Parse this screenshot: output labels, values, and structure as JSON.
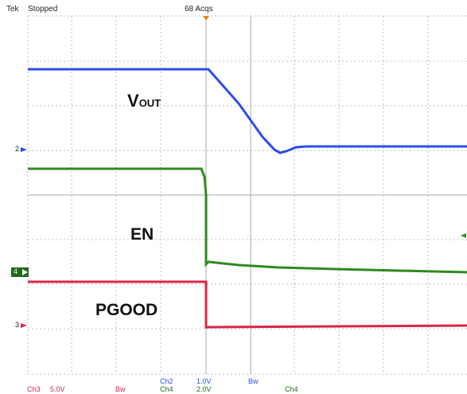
{
  "header": {
    "brand": "Tek",
    "run_state": "Stopped",
    "acquisitions": "68 Acqs"
  },
  "traces": [
    {
      "id": "vout",
      "label_main": "V",
      "label_sub": "OUT",
      "color": "#2b4ee8",
      "ch_marker": "2"
    },
    {
      "id": "en",
      "label_main": "EN",
      "color": "#2f8a1e",
      "ch_marker": "4"
    },
    {
      "id": "pgood",
      "label_main": "PGOOD",
      "color": "#d8264a",
      "ch_marker": "3"
    }
  ],
  "footer": {
    "ch3": "Ch3",
    "ch3_scale": "5.0V",
    "ch3_bw": "Bw",
    "ch2": "Ch2",
    "ch2_scale": "1.0V",
    "ch2_bw": "Bw",
    "ch4": "Ch4",
    "ch4_scale": "2.0V",
    "trig_ch": "Ch4"
  },
  "colors": {
    "grid": "#c8c8c8",
    "grid_major": "#b0b0b0",
    "ch4_marker_bg": "#1f6b1a"
  }
}
